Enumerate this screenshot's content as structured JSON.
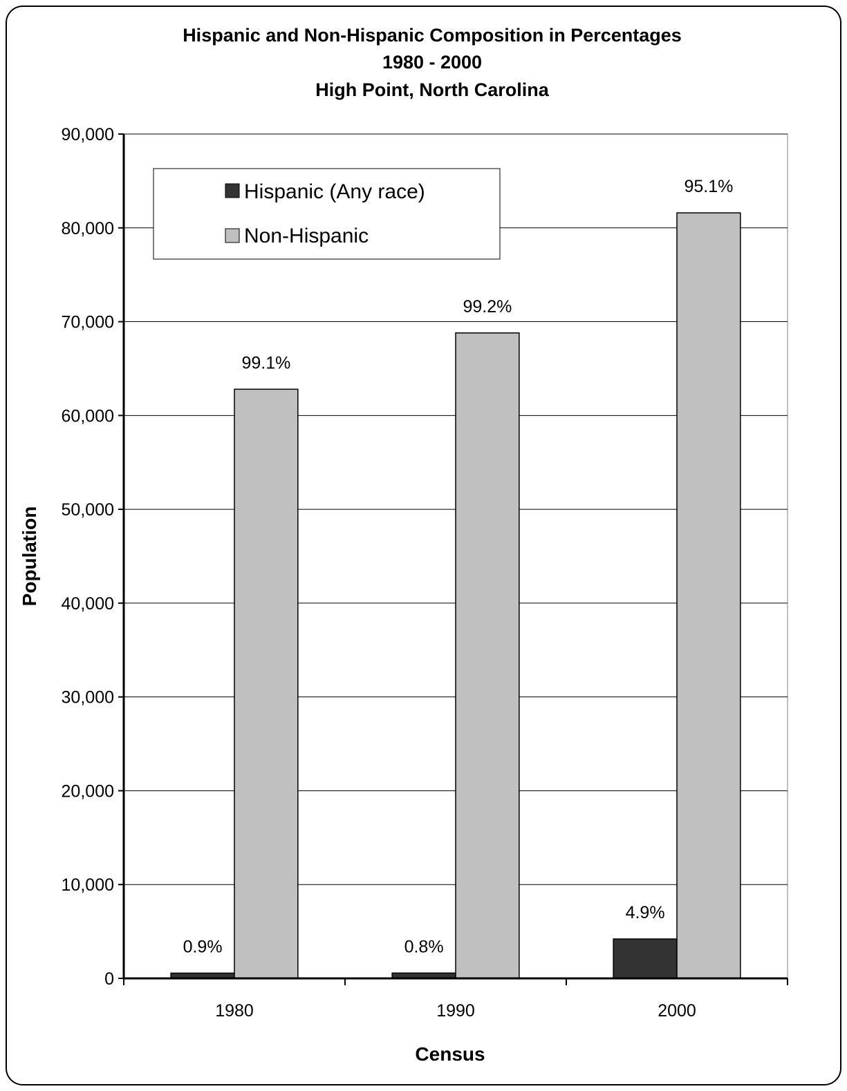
{
  "chart_data": {
    "type": "bar",
    "title": [
      "Hispanic and Non-Hispanic Composition in Percentages",
      "1980 - 2000",
      "High Point, North Carolina"
    ],
    "xlabel": "Census",
    "ylabel": "Population",
    "categories": [
      "1980",
      "1990",
      "2000"
    ],
    "ylim": [
      0,
      90000
    ],
    "yticks": [
      0,
      10000,
      20000,
      30000,
      40000,
      50000,
      60000,
      70000,
      80000,
      90000
    ],
    "ytick_labels": [
      "0",
      "10,000",
      "20,000",
      "30,000",
      "40,000",
      "50,000",
      "60,000",
      "70,000",
      "80,000",
      "90,000"
    ],
    "grid": true,
    "legend_position": "top-left",
    "series": [
      {
        "name": "Hispanic (Any race)",
        "color": "#333333",
        "values": [
          560,
          570,
          4200
        ],
        "labels": [
          "0.9%",
          "0.8%",
          "4.9%"
        ]
      },
      {
        "name": "Non-Hispanic",
        "color": "#c0c0c0",
        "values": [
          62800,
          68800,
          81600
        ],
        "labels": [
          "99.1%",
          "99.2%",
          "95.1%"
        ]
      }
    ]
  }
}
